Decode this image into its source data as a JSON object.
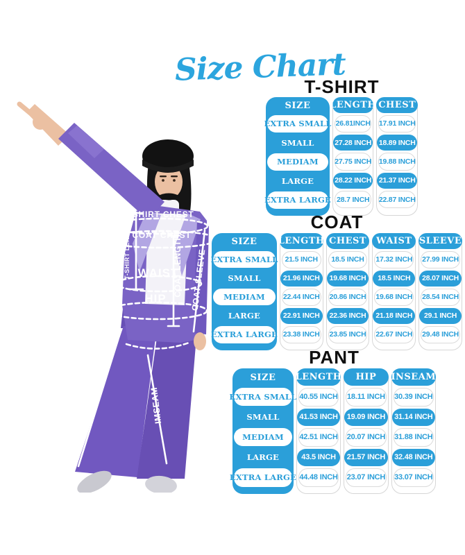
{
  "title": "Size Chart",
  "colors": {
    "accent_blue": "#2B9FD9",
    "title_blue": "#2CA5DE",
    "suit_purple": "#7A63C5",
    "suit_purple_dark": "#684FB4",
    "lapel_purple": "#B2A6E3",
    "heading_black": "#0F0F0F"
  },
  "figure": {
    "tshirt_chest": "T-SHIRT CHEST",
    "coat_chest": "COAT CHEST",
    "tshirt_length": "T-SHIRT LENGTH",
    "waist": "WAIST",
    "coat_length": "COAT LENGTH",
    "coat_sleeve": "COAT SLEEVE",
    "hip": "HIP",
    "pant_length": "PANT LENGTH",
    "inseam": "IMSEAM"
  },
  "chart_data": [
    {
      "type": "table",
      "title": "T-SHIRT",
      "columns": [
        "SIZE",
        "LENGTH",
        "CHEST"
      ],
      "rows": [
        [
          "EXTRA SMALL",
          "26.81INCH",
          "17.91 INCH"
        ],
        [
          "SMALL",
          "27.28 INCH",
          "18.89 INCH"
        ],
        [
          "MEDIAM",
          "27.75 INCH",
          "19.88 INCH"
        ],
        [
          "LARGE",
          "28.22 INCH",
          "21.37 INCH"
        ],
        [
          "EXTRA LARGE",
          "28.7 INCH",
          "22.87 INCH"
        ]
      ]
    },
    {
      "type": "table",
      "title": "COAT",
      "columns": [
        "SIZE",
        "LENGTH",
        "CHEST",
        "WAIST",
        "SLEEVE"
      ],
      "rows": [
        [
          "EXTRA SMALL",
          "21.5 INCH",
          "18.5 INCH",
          "17.32 INCH",
          "27.99 INCH"
        ],
        [
          "SMALL",
          "21.96 INCH",
          "19.68 INCH",
          "18.5 INCH",
          "28.07 INCH"
        ],
        [
          "MEDIAM",
          "22.44 INCH",
          "20.86 INCH",
          "19.68 INCH",
          "28.54 INCH"
        ],
        [
          "LARGE",
          "22.91 INCH",
          "22.36 INCH",
          "21.18 INCH",
          "29.1 INCH"
        ],
        [
          "EXTRA LARGE",
          "23.38 INCH",
          "23.85 INCH",
          "22.67 INCH",
          "29.48 INCH"
        ]
      ]
    },
    {
      "type": "table",
      "title": "PANT",
      "columns": [
        "SIZE",
        "LENGTH",
        "HIP",
        "INSEAM"
      ],
      "rows": [
        [
          "EXTRA SMALL",
          "40.55 INCH",
          "18.11 INCH",
          "30.39 INCH"
        ],
        [
          "SMALL",
          "41.53 INCH",
          "19.09 INCH",
          "31.14 INCH"
        ],
        [
          "MEDIAM",
          "42.51 INCH",
          "20.07 INCH",
          "31.88 INCH"
        ],
        [
          "LARGE",
          "43.5 INCH",
          "21.57 INCH",
          "32.48 INCH"
        ],
        [
          "EXTRA LARGE",
          "44.48 INCH",
          "23.07 INCH",
          "33.07 INCH"
        ]
      ]
    }
  ]
}
